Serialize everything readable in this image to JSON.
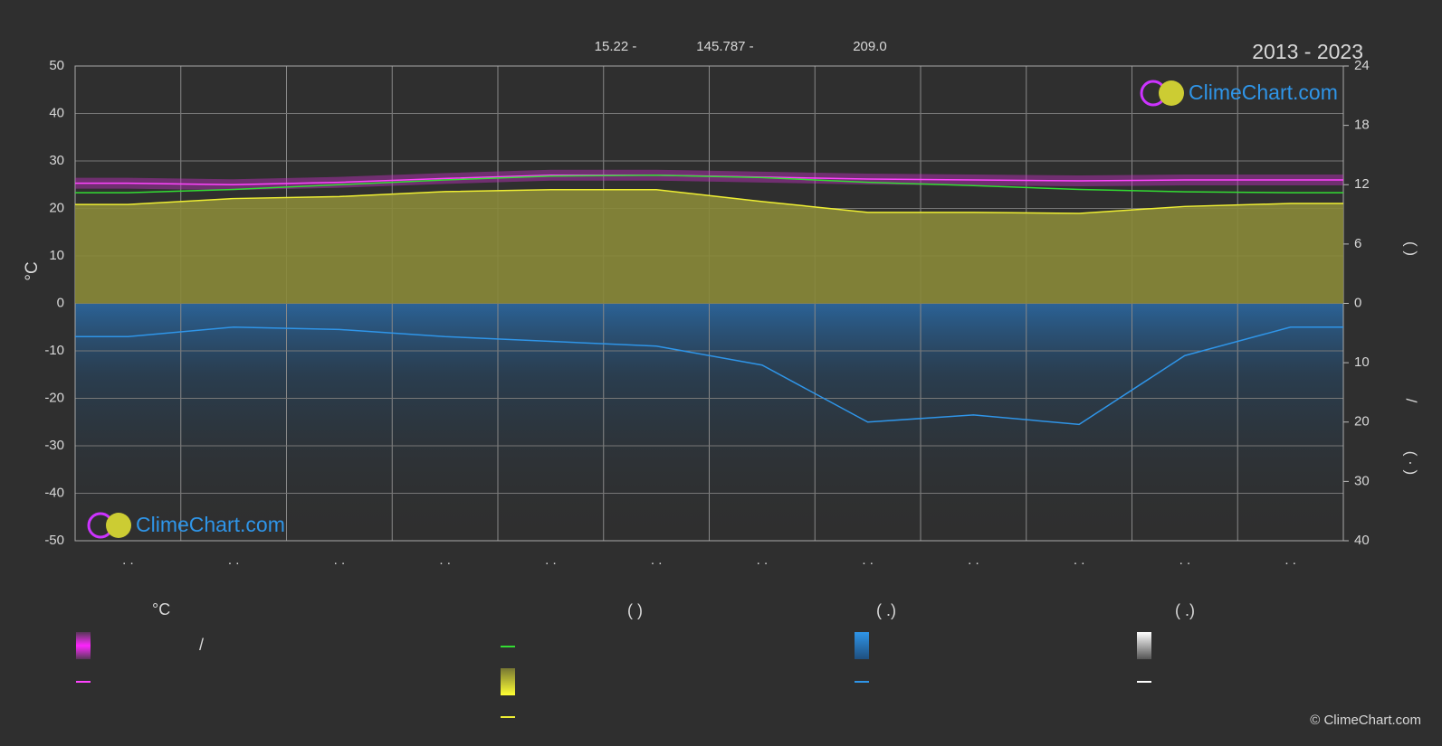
{
  "chart_data": {
    "type": "climate",
    "subtitle": "2013 - 2023",
    "annotations": [
      "15.22 -",
      "145.787 -",
      "209.0"
    ],
    "watermark": "ClimeChart.com",
    "credit": "© ClimeChart.com",
    "ylabel": "°C",
    "y2label": "(   )",
    "y3label": "/",
    "y3label2": "( · )",
    "categories": [
      ". .",
      ". .",
      ". .",
      ". .",
      ". .",
      ". .",
      ". .",
      ". .",
      ". .",
      ". .",
      ". .",
      ". ."
    ],
    "ylim": [
      -50,
      50
    ],
    "yticks": [
      -50,
      -40,
      -30,
      -20,
      -10,
      0,
      10,
      20,
      30,
      40,
      50
    ],
    "y2lim": [
      0,
      24
    ],
    "y2ticks": [
      0,
      6,
      12,
      18,
      24
    ],
    "y3lim": [
      0,
      40
    ],
    "y3ticks": [
      10,
      20,
      30,
      40
    ],
    "grid": true,
    "series": [
      {
        "color": "#ff44ff",
        "values": [
          25.3,
          25.0,
          25.5,
          26.3,
          27.0,
          27.0,
          26.6,
          26.2,
          26.0,
          25.8,
          26.0,
          26.0
        ]
      },
      {
        "color": "#33dd33",
        "values": [
          23.3,
          24.0,
          25.0,
          26.0,
          26.8,
          27.0,
          26.5,
          25.5,
          24.8,
          24.0,
          23.5,
          23.3
        ]
      },
      {
        "color": "#eeee33",
        "axis": "y2",
        "values": [
          10.0,
          10.6,
          10.8,
          11.3,
          11.5,
          11.5,
          10.3,
          9.2,
          9.2,
          9.1,
          9.8,
          10.1
        ]
      },
      {
        "color": "#2f95e8",
        "axis": "y3",
        "values": [
          5.6,
          4.0,
          4.4,
          5.6,
          6.4,
          7.2,
          10.4,
          20.0,
          18.8,
          20.4,
          8.8,
          4.0
        ]
      }
    ],
    "legend": {
      "headings": [
        "°C",
        "(          )",
        "(   .)",
        "(   .)"
      ],
      "note": "/"
    }
  }
}
